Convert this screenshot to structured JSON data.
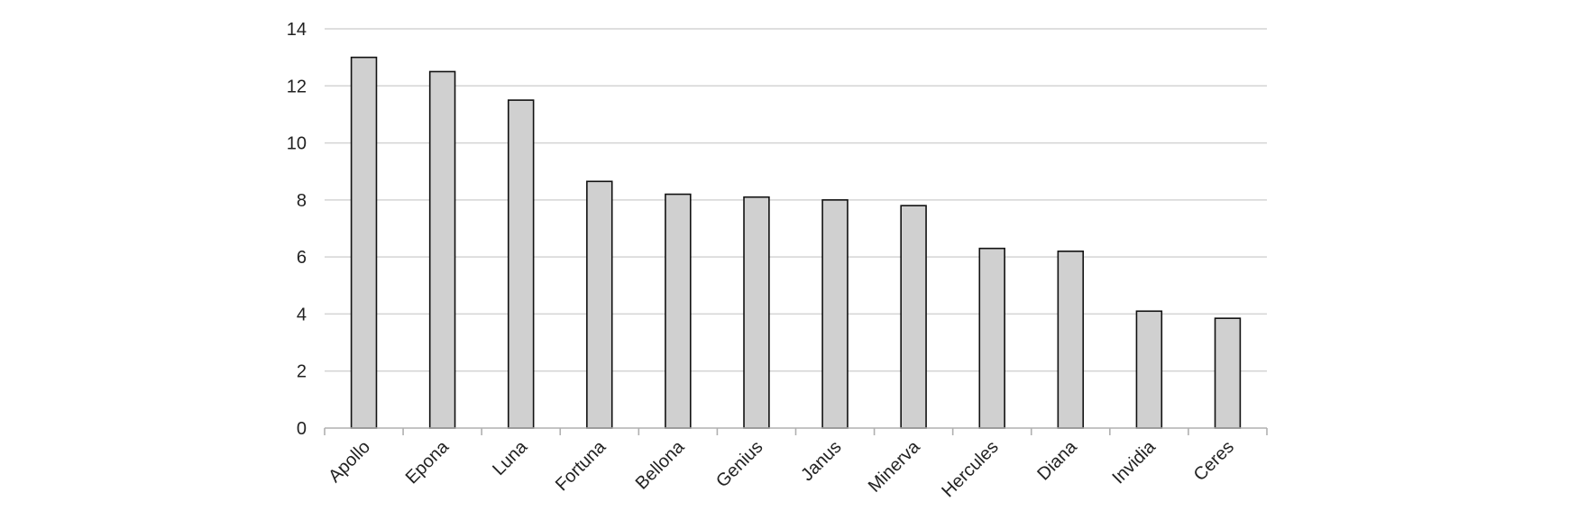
{
  "chart_data": {
    "type": "bar",
    "title": "",
    "xlabel": "",
    "ylabel": "",
    "categories": [
      "Apollo",
      "Epona",
      "Luna",
      "Fortuna",
      "Bellona",
      "Genius",
      "Janus",
      "Minerva",
      "Hercules",
      "Diana",
      "Invidia",
      "Ceres"
    ],
    "values": [
      13.0,
      12.5,
      11.5,
      8.65,
      8.2,
      8.1,
      8.0,
      7.8,
      6.3,
      6.2,
      4.1,
      3.85
    ],
    "ylim": [
      0,
      14
    ],
    "yticks": [
      0,
      2,
      4,
      6,
      8,
      10,
      12,
      14
    ],
    "grid": true,
    "legend": "none",
    "colors": {
      "bar_fill": "#d0d0d0",
      "bar_stroke": "#111111",
      "gridline": "#d4d4d4",
      "axis": "#b0b0b0"
    }
  }
}
